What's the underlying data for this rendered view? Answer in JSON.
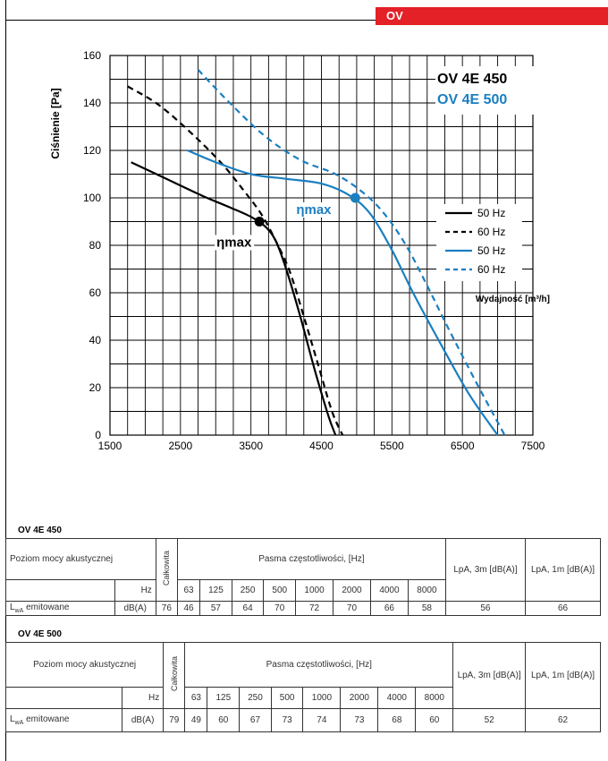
{
  "header": {
    "tag": "OV"
  },
  "chart_data": {
    "type": "line",
    "xlabel": "Wydajność [m³/h]",
    "ylabel": "Ciśnienie [Pa]",
    "xlim": [
      1500,
      7500
    ],
    "ylim": [
      0,
      160
    ],
    "x_ticks": [
      1500,
      2500,
      3500,
      4500,
      5500,
      6500,
      7500
    ],
    "y_ticks": [
      0,
      20,
      40,
      60,
      80,
      100,
      120,
      140,
      160
    ],
    "grid": true,
    "models": [
      {
        "name": "OV 4E 450",
        "color": "#000000"
      },
      {
        "name": "OV 4E 500",
        "color": "#1a7fc1"
      }
    ],
    "series": [
      {
        "name": "50 Hz",
        "model": "OV 4E 450",
        "color": "#000000",
        "dash": false,
        "x": [
          1800,
          2300,
          2800,
          3200,
          3500,
          3700,
          3850,
          4000,
          4200,
          4400,
          4600,
          4700
        ],
        "y": [
          115,
          108,
          101,
          96,
          92,
          88,
          82,
          70,
          50,
          28,
          8,
          0
        ]
      },
      {
        "name": "60 Hz",
        "model": "OV 4E 450",
        "color": "#000000",
        "dash": true,
        "x": [
          1750,
          2200,
          2700,
          3100,
          3400,
          3650,
          3850,
          4050,
          4250,
          4450,
          4650,
          4800
        ],
        "y": [
          147,
          139,
          126,
          114,
          103,
          93,
          82,
          69,
          50,
          30,
          10,
          0
        ]
      },
      {
        "name": "50 Hz",
        "model": "OV 4E 500",
        "color": "#1a7fc1",
        "dash": false,
        "x": [
          2600,
          3000,
          3500,
          4000,
          4500,
          4900,
          5200,
          5500,
          5800,
          6200,
          6600,
          7000
        ],
        "y": [
          120,
          115,
          110,
          108,
          106,
          101,
          93,
          78,
          60,
          38,
          17,
          0
        ]
      },
      {
        "name": "60 Hz",
        "model": "OV 4E 500",
        "color": "#1a7fc1",
        "dash": true,
        "x": [
          2750,
          3200,
          3700,
          4200,
          4700,
          5100,
          5400,
          5700,
          6000,
          6300,
          6700,
          7100
        ],
        "y": [
          154,
          140,
          126,
          116,
          110,
          102,
          93,
          80,
          63,
          45,
          22,
          0
        ]
      }
    ],
    "annotations": [
      {
        "text": "ηmax",
        "x": 3620,
        "y": 90,
        "color": "#000000"
      },
      {
        "text": "ηmax",
        "x": 4980,
        "y": 100,
        "color": "#1a7fc1"
      }
    ],
    "legend_position": "right"
  },
  "table_450": {
    "title": "OV 4E 450",
    "row_header": "Poziom mocy akustycznej",
    "total_label": "Całkowita",
    "bands_label": "Pasma częstotliwości, [Hz]",
    "lpa3": "LpA, 3m [dB(A)]",
    "lpa1": "LpA, 1m [dB(A)]",
    "hz_label": "Hz",
    "freqs": [
      "63",
      "125",
      "250",
      "500",
      "1000",
      "2000",
      "4000",
      "8000"
    ],
    "emit_label": "emitowane",
    "emit_sym": "L",
    "emit_sub": "wA",
    "unit": "dB(A)",
    "total": "76",
    "values": [
      "46",
      "57",
      "64",
      "70",
      "72",
      "70",
      "66",
      "58"
    ],
    "lpa3_value": "56",
    "lpa1_value": "66"
  },
  "table_500": {
    "title": "OV 4E 500",
    "row_header": "Poziom mocy akustycznej",
    "total_label": "Całkowita",
    "bands_label": "Pasma częstotliwości, [Hz]",
    "lpa3": "LpA, 3m [dB(A)]",
    "lpa1": "LpA, 1m [dB(A)]",
    "hz_label": "Hz",
    "freqs": [
      "63",
      "125",
      "250",
      "500",
      "1000",
      "2000",
      "4000",
      "8000"
    ],
    "emit_label": "emitowane",
    "emit_sym": "L",
    "emit_sub": "wA",
    "unit": "dB(A)",
    "total": "79",
    "values": [
      "49",
      "60",
      "67",
      "73",
      "74",
      "73",
      "68",
      "60"
    ],
    "lpa3_value": "52",
    "lpa1_value": "62"
  }
}
